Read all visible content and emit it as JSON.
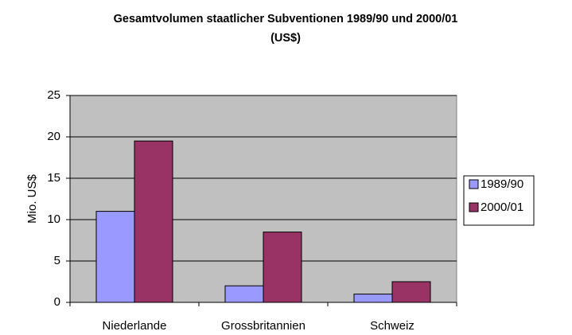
{
  "chart_data": {
    "type": "bar",
    "title": "Gesamtvolumen staatlicher Subventionen 1989/90 und 2000/01 (US$)",
    "y_label": "Mio. US$",
    "categories": [
      "Niederlande",
      "Grossbritannien",
      "Schweiz"
    ],
    "series": [
      {
        "name": "1989/90",
        "color": "#9999ff",
        "values": [
          11,
          2,
          1
        ]
      },
      {
        "name": "2000/01",
        "color": "#993366",
        "values": [
          19.5,
          8.5,
          2.5
        ]
      }
    ],
    "ylim": [
      0,
      25
    ],
    "yticks": [
      0,
      5,
      10,
      15,
      20,
      25
    ],
    "grid": true,
    "legend": "right"
  }
}
